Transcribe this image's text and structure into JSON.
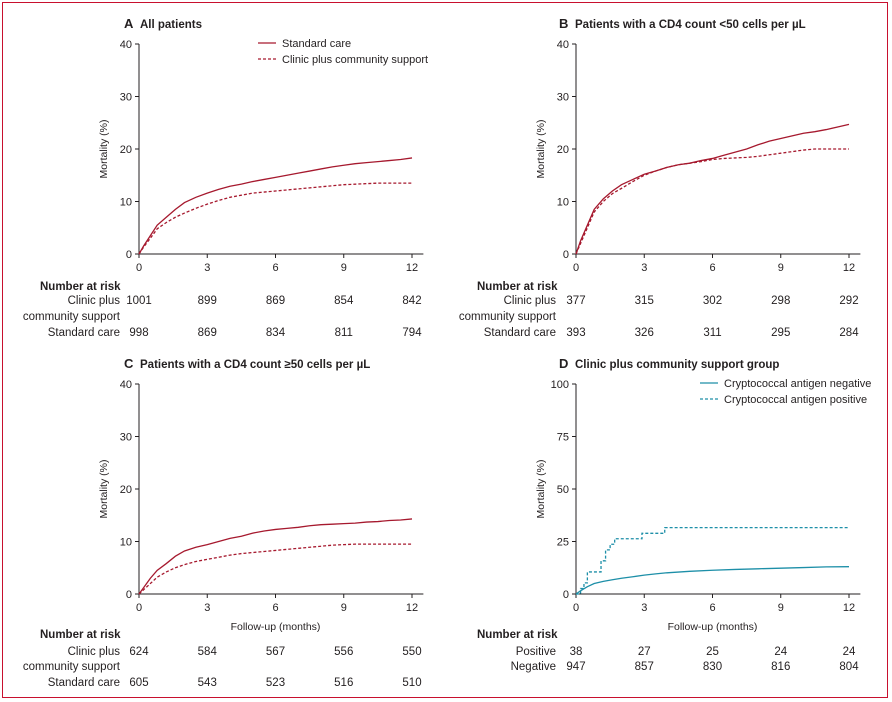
{
  "chart_data": [
    {
      "panel": "A",
      "title": "All patients",
      "type": "line",
      "xlabel": "",
      "ylabel": "Mortality (%)",
      "xticks": [
        0,
        3,
        6,
        9,
        12
      ],
      "yticks": [
        0,
        10,
        20,
        30,
        40
      ],
      "xlim": [
        0,
        12.5
      ],
      "ylim": [
        0,
        40
      ],
      "legend_position": "top-right",
      "series": [
        {
          "name": "Standard care",
          "color": "#a6192e",
          "style": "solid",
          "x": [
            0,
            0.2,
            0.5,
            0.8,
            1.2,
            1.6,
            2,
            2.5,
            3,
            3.5,
            4,
            4.5,
            5,
            5.5,
            6,
            6.5,
            7,
            7.5,
            8,
            8.5,
            9,
            9.5,
            10,
            10.5,
            11,
            11.5,
            12
          ],
          "y": [
            0,
            1.5,
            3.5,
            5.5,
            7,
            8.5,
            9.8,
            10.8,
            11.6,
            12.3,
            12.9,
            13.3,
            13.8,
            14.2,
            14.6,
            15.0,
            15.4,
            15.8,
            16.2,
            16.6,
            16.9,
            17.2,
            17.4,
            17.6,
            17.8,
            18.0,
            18.3
          ]
        },
        {
          "name": "Clinic plus community support",
          "color": "#a6192e",
          "style": "dashed",
          "x": [
            0,
            0.2,
            0.5,
            0.8,
            1.2,
            1.6,
            2,
            2.5,
            3,
            3.5,
            4,
            4.5,
            5,
            5.5,
            6,
            6.5,
            7,
            7.5,
            8,
            8.5,
            9,
            9.5,
            10,
            10.5,
            11,
            11.5,
            12
          ],
          "y": [
            0,
            1.3,
            3,
            4.8,
            6,
            7,
            7.8,
            8.7,
            9.5,
            10.2,
            10.8,
            11.2,
            11.6,
            11.8,
            12.0,
            12.2,
            12.4,
            12.6,
            12.8,
            13.0,
            13.2,
            13.3,
            13.4,
            13.5,
            13.5,
            13.5,
            13.5
          ]
        }
      ]
    },
    {
      "panel": "B",
      "title": "Patients with a CD4 count <50 cells per µL",
      "type": "line",
      "xlabel": "",
      "ylabel": "Mortality (%)",
      "xticks": [
        0,
        3,
        6,
        9,
        12
      ],
      "yticks": [
        0,
        10,
        20,
        30,
        40
      ],
      "xlim": [
        0,
        12.5
      ],
      "ylim": [
        0,
        40
      ],
      "legend_position": "",
      "series": [
        {
          "name": "Standard care",
          "color": "#a6192e",
          "style": "solid",
          "x": [
            0,
            0.2,
            0.5,
            0.8,
            1.2,
            1.6,
            2,
            2.5,
            3,
            3.5,
            4,
            4.5,
            5,
            5.5,
            6,
            6.5,
            7,
            7.5,
            8,
            8.5,
            9,
            9.5,
            10,
            10.5,
            11,
            11.5,
            12
          ],
          "y": [
            0,
            2.5,
            5.5,
            8.5,
            10.5,
            12,
            13.2,
            14.2,
            15.2,
            15.8,
            16.5,
            17.0,
            17.3,
            17.8,
            18.2,
            18.8,
            19.4,
            20.0,
            20.8,
            21.5,
            22.0,
            22.5,
            23.0,
            23.3,
            23.7,
            24.2,
            24.7
          ]
        },
        {
          "name": "Clinic plus community support",
          "color": "#a6192e",
          "style": "dashed",
          "x": [
            0,
            0.2,
            0.5,
            0.8,
            1.2,
            1.6,
            2,
            2.5,
            3,
            3.5,
            4,
            4.5,
            5,
            5.5,
            6,
            6.5,
            7,
            7.5,
            8,
            8.5,
            9,
            9.5,
            10,
            10.5,
            11,
            11.5,
            12
          ],
          "y": [
            0,
            2,
            5,
            8,
            10,
            11.5,
            12.5,
            13.8,
            15.0,
            15.8,
            16.5,
            17.0,
            17.3,
            17.6,
            18.0,
            18.2,
            18.3,
            18.4,
            18.6,
            18.9,
            19.2,
            19.5,
            19.8,
            20.0,
            20.0,
            20.0,
            20.0
          ]
        }
      ]
    },
    {
      "panel": "C",
      "title": "Patients with a CD4 count ≥50 cells per µL",
      "type": "line",
      "xlabel": "Follow-up (months)",
      "ylabel": "Mortality (%)",
      "xticks": [
        0,
        3,
        6,
        9,
        12
      ],
      "yticks": [
        0,
        10,
        20,
        30,
        40
      ],
      "xlim": [
        0,
        12.5
      ],
      "ylim": [
        0,
        40
      ],
      "legend_position": "",
      "series": [
        {
          "name": "Standard care",
          "color": "#a6192e",
          "style": "solid",
          "x": [
            0,
            0.2,
            0.5,
            0.8,
            1.2,
            1.6,
            2,
            2.5,
            3,
            3.5,
            4,
            4.5,
            5,
            5.5,
            6,
            6.5,
            7,
            7.5,
            8,
            8.5,
            9,
            9.5,
            10,
            10.5,
            11,
            11.5,
            12
          ],
          "y": [
            0,
            1.2,
            3,
            4.5,
            5.8,
            7.2,
            8.2,
            8.9,
            9.4,
            10.0,
            10.6,
            11.0,
            11.6,
            12.0,
            12.3,
            12.5,
            12.7,
            13.0,
            13.2,
            13.3,
            13.4,
            13.5,
            13.7,
            13.8,
            14.0,
            14.1,
            14.3
          ]
        },
        {
          "name": "Clinic plus community support",
          "color": "#a6192e",
          "style": "dashed",
          "x": [
            0,
            0.2,
            0.5,
            0.8,
            1.2,
            1.6,
            2,
            2.5,
            3,
            3.5,
            4,
            4.5,
            5,
            5.5,
            6,
            6.5,
            7,
            7.5,
            8,
            8.5,
            9,
            9.5,
            10,
            10.5,
            11,
            11.5,
            12
          ],
          "y": [
            0,
            0.8,
            2,
            3.2,
            4.2,
            5,
            5.6,
            6.2,
            6.6,
            7.0,
            7.4,
            7.7,
            7.9,
            8.1,
            8.3,
            8.5,
            8.7,
            8.9,
            9.1,
            9.3,
            9.4,
            9.5,
            9.5,
            9.5,
            9.5,
            9.5,
            9.5
          ]
        }
      ]
    },
    {
      "panel": "D",
      "title": "Clinic plus community support group",
      "type": "line",
      "xlabel": "Follow-up (months)",
      "ylabel": "Mortality (%)",
      "xticks": [
        0,
        3,
        6,
        9,
        12
      ],
      "yticks": [
        0,
        25,
        50,
        75,
        100
      ],
      "xlim": [
        0,
        12.5
      ],
      "ylim": [
        0,
        100
      ],
      "legend_position": "top-right",
      "series": [
        {
          "name": "Cryptococcal antigen negative",
          "color": "#1d8fa8",
          "style": "solid",
          "x": [
            0,
            0.2,
            0.5,
            0.8,
            1.2,
            1.6,
            2,
            2.5,
            3,
            3.5,
            4,
            5,
            6,
            7,
            8,
            9,
            10,
            11,
            12
          ],
          "y": [
            0,
            1.5,
            3.5,
            5,
            6,
            6.8,
            7.5,
            8.2,
            9,
            9.6,
            10.1,
            10.8,
            11.3,
            11.7,
            12.0,
            12.3,
            12.6,
            12.9,
            13.0
          ]
        },
        {
          "name": "Cryptococcal antigen positive",
          "color": "#1d8fa8",
          "style": "dashed-step",
          "x": [
            0,
            0.2,
            0.35,
            0.5,
            0.9,
            1.1,
            1.3,
            1.5,
            1.7,
            2.2,
            2.9,
            3.2,
            3.9,
            4.0,
            12
          ],
          "y": [
            0,
            2.6,
            5.3,
            10.5,
            10.5,
            15.8,
            21.0,
            23.7,
            26.3,
            26.3,
            28.9,
            28.9,
            31.6,
            31.6,
            31.6
          ]
        }
      ]
    }
  ],
  "panels": {
    "A": {
      "label": "A",
      "title": "All patients"
    },
    "B": {
      "label": "B",
      "title": "Patients with a CD4 count <50 cells per µL"
    },
    "C": {
      "label": "C",
      "title": "Patients with a CD4 count ≥50 cells per µL"
    },
    "D": {
      "label": "D",
      "title": "Clinic plus community support group"
    }
  },
  "risk_tables": {
    "A": {
      "heading": "Number at risk",
      "rows": [
        {
          "label": [
            "Clinic plus",
            "community support"
          ],
          "values": [
            "1001",
            "899",
            "869",
            "854",
            "842"
          ]
        },
        {
          "label": [
            "Standard care"
          ],
          "values": [
            "998",
            "869",
            "834",
            "811",
            "794"
          ]
        }
      ]
    },
    "B": {
      "heading": "Number at risk",
      "rows": [
        {
          "label": [
            "Clinic plus",
            "community support"
          ],
          "values": [
            "377",
            "315",
            "302",
            "298",
            "292"
          ]
        },
        {
          "label": [
            "Standard care"
          ],
          "values": [
            "393",
            "326",
            "311",
            "295",
            "284"
          ]
        }
      ]
    },
    "C": {
      "heading": "Number at risk",
      "rows": [
        {
          "label": [
            "Clinic plus",
            "community support"
          ],
          "values": [
            "624",
            "584",
            "567",
            "556",
            "550"
          ]
        },
        {
          "label": [
            "Standard care"
          ],
          "values": [
            "605",
            "543",
            "523",
            "516",
            "510"
          ]
        }
      ]
    },
    "D": {
      "heading": "Number at risk",
      "rows": [
        {
          "label": [
            "Positive"
          ],
          "values": [
            "38",
            "27",
            "25",
            "24",
            "24"
          ]
        },
        {
          "label": [
            "Negative"
          ],
          "values": [
            "947",
            "857",
            "830",
            "816",
            "804"
          ]
        }
      ]
    }
  },
  "colors": {
    "frame": "#c8102e",
    "red_series": "#a6192e",
    "teal_series": "#1d8fa8",
    "text": "#231f20"
  }
}
